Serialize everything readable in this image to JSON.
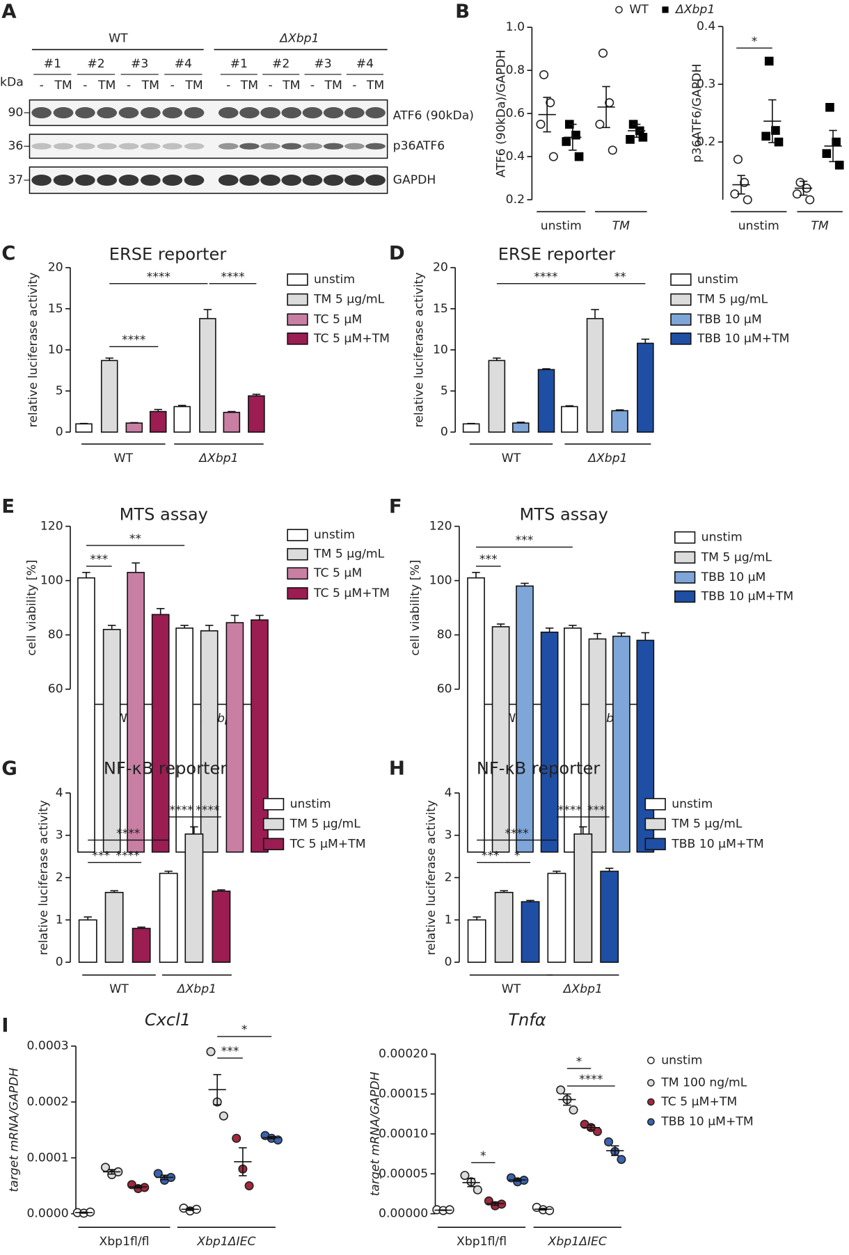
{
  "panel_labels": [
    "A",
    "B",
    "C",
    "D",
    "E",
    "F",
    "G",
    "H",
    "I"
  ],
  "blot": {
    "groups": [
      "WT",
      "ΔXbp1"
    ],
    "replicates": [
      "#1",
      "#2",
      "#3",
      "#4",
      "#1",
      "#2",
      "#3",
      "#4"
    ],
    "lanes": [
      "-",
      "TM",
      "-",
      "TM",
      "-",
      "TM",
      "-",
      "TM",
      "-",
      "TM",
      "-",
      "TM",
      "-",
      "TM",
      "-",
      "TM"
    ],
    "unit": "kDa",
    "markers": [
      90,
      36,
      37
    ],
    "bands": [
      "ATF6 (90kDa)",
      "p36ATF6",
      "GAPDH"
    ]
  },
  "chart_data": [
    {
      "type": "dot",
      "ylabel": "ATF6 (90kDa)/GAPDH",
      "categories": [
        "unstim",
        "TM"
      ],
      "ylim": [
        0.2,
        1.0
      ],
      "yticks": [
        0.2,
        0.4,
        0.6,
        0.8,
        {
          "value": 1,
          "label": "1.0"
        }
      ],
      "series": [
        {
          "name": "WT",
          "marker": "circle",
          "color": "#ffffff",
          "values": [
            [
              0.78,
              0.65,
              0.55,
              0.4
            ],
            [
              0.88,
              0.65,
              0.55,
              0.43
            ]
          ],
          "mean": [
            0.595,
            0.63
          ],
          "sem": [
            0.08,
            0.095
          ]
        },
        {
          "name": "ΔXbp1",
          "marker": "square",
          "color": "#000000",
          "values": [
            [
              0.55,
              0.5,
              0.47,
              0.4
            ],
            [
              0.55,
              0.52,
              0.48,
              0.49
            ]
          ],
          "mean": [
            0.49,
            0.52
          ],
          "sem": [
            0.06,
            0.03
          ]
        }
      ]
    },
    {
      "type": "dot",
      "ylabel": "p36ATF6/GAPDH",
      "categories": [
        "unstim",
        "TM"
      ],
      "ylim": [
        0.1,
        0.4
      ],
      "yticks": [
        0.2,
        0.3,
        0.4
      ],
      "annotations": [
        "*"
      ],
      "series": [
        {
          "marker": "circle",
          "color": "#ffffff",
          "values": [
            [
              0.17,
              0.13,
              0.11,
              0.1
            ],
            [
              0.13,
              0.12,
              0.11,
              0.1
            ]
          ],
          "mean": [
            0.126,
            0.12
          ],
          "sem": [
            0.016,
            0.012
          ]
        },
        {
          "marker": "square",
          "color": "#000000",
          "values": [
            [
              0.34,
              0.22,
              0.21,
              0.2
            ],
            [
              0.26,
              0.2,
              0.18,
              0.16
            ]
          ],
          "mean": [
            0.236,
            0.193
          ],
          "sem": [
            0.037,
            0.027
          ]
        }
      ]
    },
    {
      "type": "bar",
      "title": "ERSE reporter",
      "ylabel": "relative luciferase activity",
      "categories": [
        "WT",
        "ΔXbp1"
      ],
      "ylim": [
        0,
        20
      ],
      "yticks": [
        0,
        5,
        10,
        15,
        20
      ],
      "annotations": [
        "****",
        "****",
        "****"
      ],
      "series": [
        {
          "name": "unstim",
          "color": "#ffffff",
          "values": [
            1.0,
            3.1
          ],
          "errors": [
            0.05,
            0.15
          ]
        },
        {
          "name": "TM 5 µg/mL",
          "color": "#dcdcdc",
          "values": [
            8.7,
            13.8
          ],
          "errors": [
            0.3,
            1.1
          ]
        },
        {
          "name": "TC 5 µM",
          "color": "#c97fa3",
          "values": [
            1.1,
            2.4
          ],
          "errors": [
            0.05,
            0.1
          ]
        },
        {
          "name": "TC 5 µM+TM",
          "color": "#9b1d52",
          "values": [
            2.5,
            4.4
          ],
          "errors": [
            0.25,
            0.2
          ]
        }
      ]
    },
    {
      "type": "bar",
      "title": "ERSE reporter",
      "ylabel": "relative luciferase activity",
      "categories": [
        "WT",
        "ΔXbp1"
      ],
      "ylim": [
        0,
        20
      ],
      "yticks": [
        0,
        5,
        10,
        15,
        20
      ],
      "annotations": [
        "****",
        "**"
      ],
      "series": [
        {
          "name": "unstim",
          "color": "#ffffff",
          "values": [
            1.0,
            3.1
          ],
          "errors": [
            0.05,
            0.1
          ]
        },
        {
          "name": "TM 5 µg/mL",
          "color": "#dcdcdc",
          "values": [
            8.7,
            13.8
          ],
          "errors": [
            0.3,
            1.1
          ]
        },
        {
          "name": "TBB 10 µM",
          "color": "#7fa6d8",
          "values": [
            1.1,
            2.6
          ],
          "errors": [
            0.1,
            0.1
          ]
        },
        {
          "name": "TBB 10 µM+TM",
          "color": "#1f4fa5",
          "values": [
            7.6,
            10.8
          ],
          "errors": [
            0.1,
            0.5
          ]
        }
      ]
    },
    {
      "type": "bar",
      "title": "MTS assay",
      "ylabel": "cell viability [%]",
      "categories": [
        "WT",
        "ΔXbp1"
      ],
      "ylim": [
        60,
        120
      ],
      "yticks": [
        60,
        80,
        100,
        120
      ],
      "annotations": [
        "***",
        "**"
      ],
      "series": [
        {
          "name": "unstim",
          "color": "#ffffff",
          "values": [
            101,
            82.5
          ],
          "errors": [
            2,
            1
          ]
        },
        {
          "name": "TM 5 µg/mL",
          "color": "#dcdcdc",
          "values": [
            82,
            81.5
          ],
          "errors": [
            1.5,
            2
          ]
        },
        {
          "name": "TC 5 µM",
          "color": "#c97fa3",
          "values": [
            103,
            84.5
          ],
          "errors": [
            3.5,
            2.7
          ]
        },
        {
          "name": "TC 5 µM+TM",
          "color": "#9b1d52",
          "values": [
            87.5,
            85.5
          ],
          "errors": [
            2.2,
            1.7
          ]
        }
      ]
    },
    {
      "type": "bar",
      "title": "MTS assay",
      "ylabel": "cell viability [%]",
      "categories": [
        "WT",
        "ΔXbp1"
      ],
      "ylim": [
        60,
        120
      ],
      "yticks": [
        60,
        80,
        100,
        120
      ],
      "annotations": [
        "***",
        "***"
      ],
      "series": [
        {
          "name": "unstim",
          "color": "#ffffff",
          "values": [
            101,
            82.5
          ],
          "errors": [
            2,
            1
          ]
        },
        {
          "name": "TM 5 µg/mL",
          "color": "#dcdcdc",
          "values": [
            83,
            78.5
          ],
          "errors": [
            1,
            2
          ]
        },
        {
          "name": "TBB 10 µM",
          "color": "#7fa6d8",
          "values": [
            98,
            79.5
          ],
          "errors": [
            1,
            1.2
          ]
        },
        {
          "name": "TBB 10 µM+TM",
          "color": "#1f4fa5",
          "values": [
            81,
            78
          ],
          "errors": [
            1.5,
            2.8
          ]
        }
      ]
    },
    {
      "type": "bar",
      "title": "NF-κB reporter",
      "ylabel": "relative luciferase activity",
      "categories": [
        "WT",
        "ΔXbp1"
      ],
      "ylim": [
        0,
        4
      ],
      "yticks": [
        0,
        1,
        2,
        3,
        4
      ],
      "annotations": [
        "***",
        "****",
        "****",
        "****",
        "****"
      ],
      "series": [
        {
          "name": "unstim",
          "color": "#ffffff",
          "values": [
            1.0,
            2.1
          ],
          "errors": [
            0.07,
            0.05
          ]
        },
        {
          "name": "TM 5 µg/mL",
          "color": "#dcdcdc",
          "values": [
            1.65,
            3.03
          ],
          "errors": [
            0.04,
            0.17
          ]
        },
        {
          "name": "TC 5 µM+TM",
          "color": "#9b1d52",
          "values": [
            0.8,
            1.68
          ],
          "errors": [
            0.03,
            0.03
          ]
        }
      ]
    },
    {
      "type": "bar",
      "title": "NF-κB reporter",
      "ylabel": "relative luciferase activity",
      "categories": [
        "WT",
        "ΔXbp1"
      ],
      "ylim": [
        0,
        4
      ],
      "yticks": [
        0,
        1,
        2,
        3,
        4
      ],
      "annotations": [
        "***",
        "*",
        "****",
        "****",
        "***"
      ],
      "series": [
        {
          "name": "unstim",
          "color": "#ffffff",
          "values": [
            1.0,
            2.1
          ],
          "errors": [
            0.07,
            0.05
          ]
        },
        {
          "name": "TM 5 µg/mL",
          "color": "#dcdcdc",
          "values": [
            1.65,
            3.03
          ],
          "errors": [
            0.04,
            0.17
          ]
        },
        {
          "name": "TBB 10 µM+TM",
          "color": "#1f4fa5",
          "values": [
            1.43,
            2.15
          ],
          "errors": [
            0.03,
            0.07
          ]
        }
      ]
    },
    {
      "type": "dot",
      "title": "Cxcl1",
      "ylabel": "target mRNA/GAPDH",
      "categories": [
        "Xbp1fl/fl",
        "Xbp1ΔIEC"
      ],
      "ylim": [
        0,
        0.0003
      ],
      "yticks": [
        {
          "value": 0,
          "label": "0.0000"
        },
        {
          "value": 0.0001,
          "label": "0.0001"
        },
        {
          "value": 0.0002,
          "label": "0.0002"
        },
        {
          "value": 0.0003,
          "label": "0.0003"
        }
      ],
      "annotations": [
        "*",
        "***"
      ],
      "series": [
        {
          "marker": "circle",
          "color": "#ffffff",
          "values": [
            [
              2e-06,
              1e-06,
              3e-06
            ],
            [
              1e-05,
              5e-06,
              8e-06
            ]
          ],
          "mean": [
            2e-06,
            8e-06
          ],
          "sem": [
            1e-06,
            2e-06
          ]
        },
        {
          "marker": "circle",
          "color": "#dcdcdc",
          "values": [
            [
              8.3e-05,
              7e-05,
              7.5e-05
            ],
            [
              0.00029,
              0.0002,
              0.000175
            ]
          ],
          "mean": [
            7.5e-05,
            0.000222
          ],
          "sem": [
            4e-06,
            2.7e-05
          ]
        },
        {
          "marker": "circle",
          "color": "#a3283f",
          "values": [
            [
              5.2e-05,
              4.5e-05,
              4.7e-05
            ],
            [
              0.000135,
              8e-05,
              5e-05
            ]
          ],
          "mean": [
            4.8e-05,
            9.3e-05
          ],
          "sem": [
            2e-06,
            2.5e-05
          ]
        },
        {
          "marker": "circle",
          "color": "#3a63b0",
          "values": [
            [
              7.2e-05,
              6e-05,
              6.5e-05
            ],
            [
              0.00014,
              0.000135,
              0.000132
            ]
          ],
          "mean": [
            6.5e-05,
            0.000136
          ],
          "sem": [
            4e-06,
            2e-06
          ]
        }
      ]
    },
    {
      "type": "dot",
      "title": "Tnfα",
      "ylabel": "target mRNA/GAPDH",
      "categories": [
        "Xbp1fl/fl",
        "Xbp1ΔIEC"
      ],
      "ylim": [
        0,
        0.0002
      ],
      "yticks": [
        {
          "value": 0,
          "label": "0.00000"
        },
        {
          "value": 5e-05,
          "label": "0.00005"
        },
        {
          "value": 0.0001,
          "label": "0.00010"
        },
        {
          "value": 0.00015,
          "label": "0.00015"
        },
        {
          "value": 0.0002,
          "label": "0.00020"
        }
      ],
      "annotations": [
        "*",
        "*",
        "****"
      ],
      "series": [
        {
          "name": "unstim",
          "marker": "circle",
          "color": "#ffffff",
          "values": [
            [
              5e-06,
              4e-06,
              5e-06
            ],
            [
              8e-06,
              5e-06,
              4e-06
            ]
          ],
          "mean": [
            4.5e-06,
            5.7e-06
          ],
          "sem": [
            3e-07,
            1e-06
          ]
        },
        {
          "name": "TM 100 ng/mL",
          "marker": "circle",
          "color": "#dcdcdc",
          "values": [
            [
              4.8e-05,
              4e-05,
              3e-05
            ],
            [
              0.000155,
              0.000143,
              0.00013
            ]
          ],
          "mean": [
            3.9e-05,
            0.000143
          ],
          "sem": [
            5e-06,
            7e-06
          ]
        },
        {
          "name": "TC 5 µM+TM",
          "marker": "circle",
          "color": "#a3283f",
          "values": [
            [
              1.6e-05,
              1e-05,
              1.2e-05
            ],
            [
              0.000112,
              0.000108,
              0.000103
            ]
          ],
          "mean": [
            1.27e-05,
            0.000108
          ],
          "sem": [
            2e-06,
            3e-06
          ]
        },
        {
          "name": "TBB 10 µM+TM",
          "marker": "circle",
          "color": "#3a63b0",
          "values": [
            [
              4.5e-05,
              4e-05,
              4.2e-05
            ],
            [
              9e-05,
              7.8e-05,
              6.8e-05
            ]
          ],
          "mean": [
            4.23e-05,
            7.9e-05
          ],
          "sem": [
            1.5e-06,
            6e-06
          ]
        }
      ]
    }
  ]
}
